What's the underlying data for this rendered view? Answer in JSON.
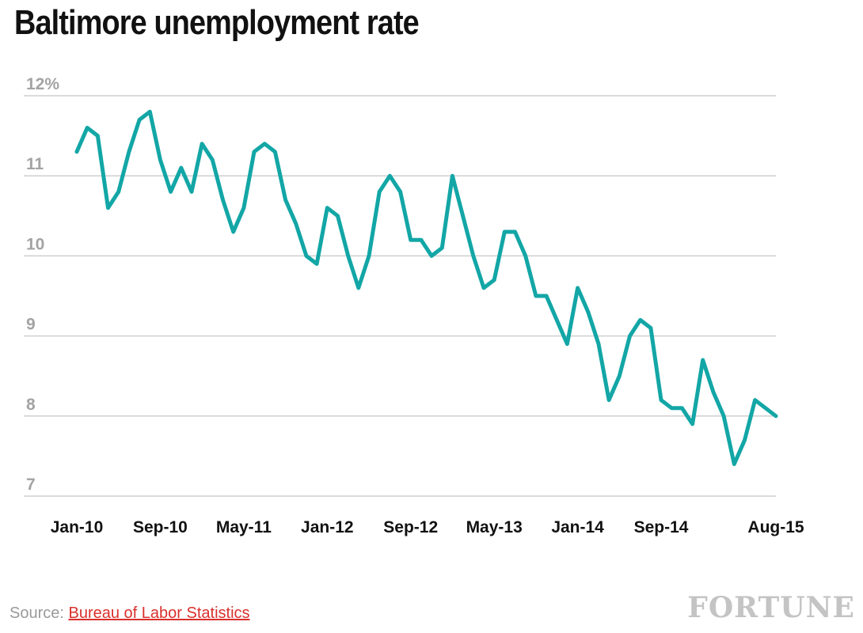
{
  "page": {
    "source_label": "Source:",
    "source_link_text": "Bureau of Labor Statistics",
    "logo_text": "FORTUNE"
  },
  "chart_data": {
    "type": "line",
    "title": "Baltimore unemployment rate",
    "xlabel": "",
    "ylabel": "",
    "ylim": [
      7,
      12
    ],
    "yticks": [
      7,
      8,
      9,
      10,
      11,
      12
    ],
    "ytick_labels": [
      "7",
      "8",
      "9",
      "10",
      "11",
      "12%"
    ],
    "grid": true,
    "xticks": [
      {
        "index": 0,
        "label": "Jan-10"
      },
      {
        "index": 8,
        "label": "Sep-10"
      },
      {
        "index": 16,
        "label": "May-11"
      },
      {
        "index": 24,
        "label": "Jan-12"
      },
      {
        "index": 32,
        "label": "Sep-12"
      },
      {
        "index": 40,
        "label": "May-13"
      },
      {
        "index": 48,
        "label": "Jan-14"
      },
      {
        "index": 56,
        "label": "Sep-14"
      },
      {
        "index": 67,
        "label": "Aug-15"
      }
    ],
    "line_color": "#13a6a6",
    "series": [
      {
        "name": "Baltimore unemployment rate",
        "values": [
          11.3,
          11.6,
          11.5,
          10.6,
          10.8,
          11.3,
          11.7,
          11.8,
          11.2,
          10.8,
          11.1,
          10.8,
          11.4,
          11.2,
          10.7,
          10.3,
          10.6,
          11.3,
          11.4,
          11.3,
          10.7,
          10.4,
          10.0,
          9.9,
          10.6,
          10.5,
          10.0,
          9.6,
          10.0,
          10.8,
          11.0,
          10.8,
          10.2,
          10.2,
          10.0,
          10.1,
          11.0,
          10.5,
          10.0,
          9.6,
          9.7,
          10.3,
          10.3,
          10.0,
          9.5,
          9.5,
          9.2,
          8.9,
          9.6,
          9.3,
          8.9,
          8.2,
          8.5,
          9.0,
          9.2,
          9.1,
          8.2,
          8.1,
          8.1,
          7.9,
          8.7,
          8.3,
          8.0,
          7.4,
          7.7,
          8.2,
          8.1,
          8.0
        ]
      }
    ]
  }
}
